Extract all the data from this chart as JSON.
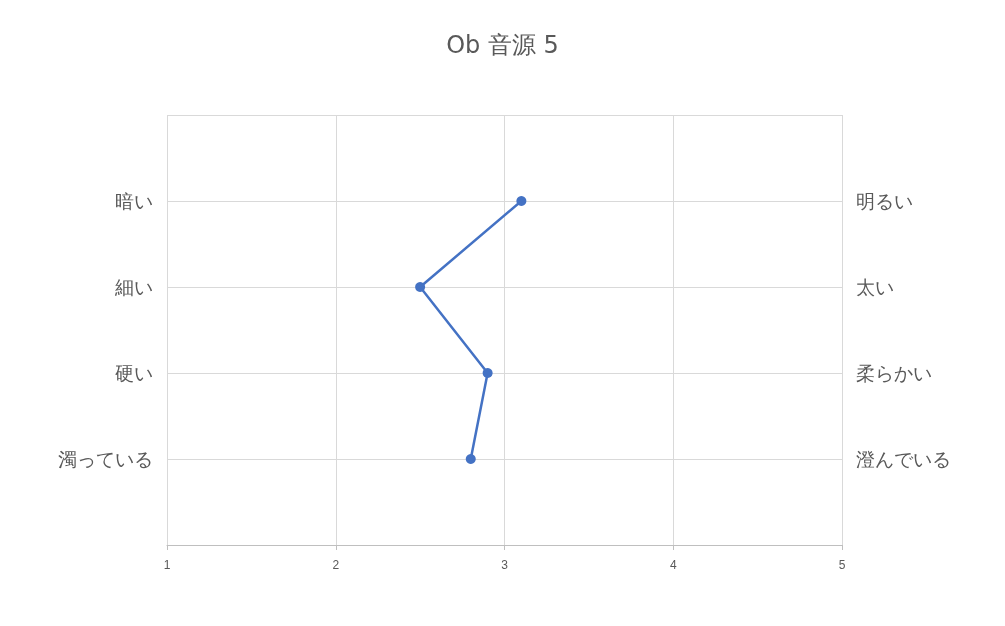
{
  "chart_data": {
    "type": "line",
    "title": "Ob 音源 5",
    "orientation": "horizontal",
    "categories": [
      null,
      "暗い",
      "細い",
      "硬い",
      "濁っている",
      null
    ],
    "y2_categories": [
      null,
      "明るい",
      "太い",
      "柔らかい",
      "澄んでいる",
      null
    ],
    "series": [
      {
        "color": "#4472c4",
        "values": [
          null,
          3.1,
          2.5,
          2.9,
          2.8,
          null
        ]
      }
    ],
    "xlim": [
      1,
      5
    ],
    "xticks": [
      1,
      2,
      3,
      4,
      5
    ],
    "grid": true,
    "marker": "circle",
    "line_style": "solid"
  }
}
